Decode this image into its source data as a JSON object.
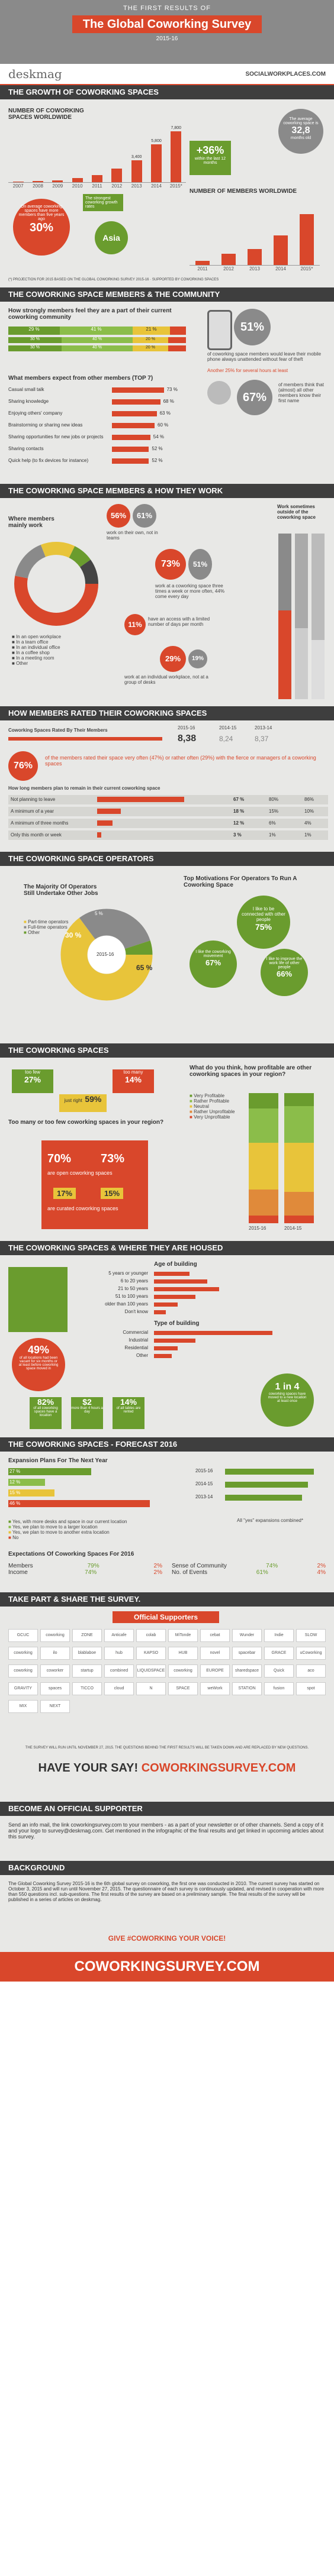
{
  "header": {
    "first_results": "THE FIRST RESULTS OF",
    "title": "The Global Coworking Survey",
    "year": "2015-16",
    "brand": "deskmag",
    "brand2": "SOCIALWORKPLACES.COM"
  },
  "sec1": {
    "title": "THE GROWTH OF COWORKING SPACES",
    "chart1_title": "NUMBER OF COWORKING SPACES WORLDWIDE",
    "growth_pct": "+36%",
    "growth_text": "within the last 12 months",
    "avg_text": "The average coworking space is",
    "avg_value": "32,8",
    "avg_unit": "months old",
    "callout_pct": "30%",
    "callout_text": "On average coworking spaces have more members than five years ago",
    "asia_label": "Asia",
    "asia_text": "The strongest coworking growth rates",
    "chart2_title": "NUMBER OF MEMBERS WORLDWIDE",
    "footnote": "(*) PROJECTION FOR 2015 BASED ON THE GLOBAL COWORKING SURVEY 2015-16 · SUPPORTED BY COWORKING SPACES"
  },
  "chart_data": [
    {
      "type": "bar",
      "title": "NUMBER OF COWORKING SPACES WORLDWIDE",
      "categories": [
        "2007",
        "2008",
        "2009",
        "2010",
        "2011",
        "2012",
        "2013",
        "2014",
        "2015*"
      ],
      "values": [
        75,
        160,
        310,
        600,
        1130,
        2070,
        3400,
        5800,
        7800
      ],
      "labels": [
        "",
        "",
        "",
        "",
        "",
        "",
        "3,400",
        "5,800",
        "7,800"
      ]
    },
    {
      "type": "bar",
      "title": "NUMBER OF MEMBERS WORLDWIDE",
      "categories": [
        "2011",
        "2012",
        "2013",
        "2014",
        "2015*"
      ],
      "values": [
        43000,
        110000,
        160000,
        295000,
        510000
      ],
      "labels": [
        "",
        "",
        "",
        "",
        ""
      ]
    },
    {
      "type": "bar",
      "title": "How strongly members feel they are a part of their current coworking community",
      "categories": [
        "2015",
        "2014",
        "2013"
      ],
      "series": [
        {
          "name": "1",
          "values": [
            29,
            30,
            30
          ]
        },
        {
          "name": "2",
          "values": [
            41,
            40,
            40
          ]
        },
        {
          "name": "3",
          "values": [
            21,
            20,
            20
          ]
        }
      ]
    },
    {
      "type": "bar",
      "title": "What members expect from other members (TOP 7)",
      "categories": [
        "Casual small talk",
        "Sharing knowledge",
        "Enjoying others' company",
        "Brainstorming or sharing new ideas",
        "Sharing opportunities for new jobs or projects",
        "Sharing contacts",
        "Quick help (to fix devices for instance)"
      ],
      "values": [
        73,
        68,
        63,
        60,
        54,
        52,
        52
      ]
    },
    {
      "type": "bar",
      "title": "How members rated their coworking spaces",
      "categories": [
        "2015-16",
        "2014-15",
        "2013-14"
      ],
      "values": [
        8.38,
        8.24,
        8.37
      ]
    },
    {
      "type": "table",
      "title": "How long members plan to remain in their current coworking space",
      "rows": [
        [
          "Not planning to leave",
          "67%",
          "80%",
          "86%"
        ],
        [
          "A minimum of a year",
          "18%",
          "15%",
          "10%"
        ],
        [
          "A minimum of three months",
          "12%",
          "6%",
          "4%"
        ],
        [
          "Only this month or week",
          "3%",
          "1%",
          "1%"
        ]
      ]
    },
    {
      "type": "pie",
      "title": "The Majority Of Operators Still Undertake Other Jobs",
      "categories": [
        "Part-time operators",
        "Full-time operators",
        "Other"
      ],
      "values": [
        65,
        30,
        5
      ]
    },
    {
      "type": "bar",
      "title": "Expansion Plans For The Next Year",
      "categories": [
        "Yes, with more desks and space in our current location",
        "Yes, we plan to move to a larger location",
        "Yes, we plan to move to another extra location",
        "No"
      ],
      "series": [
        {
          "name": "2015-16",
          "values": [
            27,
            12,
            15,
            46
          ]
        },
        {
          "name": "2014-15",
          "values": [
            25,
            13,
            17,
            45
          ]
        }
      ]
    }
  ],
  "sec2": {
    "title": "THE COWORKING SPACE MEMBERS & THE COMMUNITY",
    "q1": "How strongly members feel they are a part of their current coworking community",
    "rows": [
      {
        "year": "2015",
        "a": "29 %",
        "b": "41 %",
        "c": "21 %"
      },
      {
        "year": "2014",
        "a": "30 %",
        "b": "40 %",
        "c": "20 %"
      },
      {
        "year": "2013",
        "a": "30 %",
        "b": "40 %",
        "c": "20 %"
      }
    ],
    "phone_pct": "51%",
    "phone_text": "of coworking space members would leave their mobile phone always unattended without fear of theft",
    "another_text": "Another 25% for several hours at least",
    "members_pct": "67%",
    "members_text": "of members think that (almost) all other members know their first name",
    "expect_title": "What members expect from other members (TOP 7)",
    "expect": [
      {
        "label": "Casual small talk",
        "value": "73 %"
      },
      {
        "label": "Sharing knowledge",
        "value": "68 %"
      },
      {
        "label": "Enjoying others' company",
        "value": "63 %"
      },
      {
        "label": "Brainstorming or sharing new ideas",
        "value": "60 %"
      },
      {
        "label": "Sharing opportunities for new jobs or projects",
        "value": "54 %"
      },
      {
        "label": "Sharing contacts",
        "value": "52 %"
      },
      {
        "label": "Quick help (to fix devices for instance)",
        "value": "52 %"
      }
    ]
  },
  "sec3": {
    "title": "THE COWORKING SPACE MEMBERS & HOW THEY WORK",
    "where_title": "Where members mainly work",
    "p1": "56%",
    "p2": "61%",
    "p1_text": "work on their own, not in teams",
    "p3": "73%",
    "p4": "51%",
    "p3_text": "work at a coworking space three times a week or more often, 44% come every day",
    "p5": "11%",
    "p5_text": "have an access with a limited number of days per month",
    "p6": "29%",
    "p7": "19%",
    "p6_text": "work at an individual workplace, not at a group of desks",
    "outside_title": "Work sometimes outside of the coworking space",
    "legend": [
      "In an open workplace",
      "In a team office",
      "In an individual office",
      "In a coffee shop",
      "In a meeting room",
      "Other"
    ]
  },
  "sec4": {
    "title": "HOW MEMBERS RATED THEIR COWORKING SPACES",
    "rated": "Coworking Spaces Rated By Their Members",
    "v1": "8,38",
    "v2": "8,24",
    "v3": "8,37",
    "y1": "2015-16",
    "y2": "2014-15",
    "y3": "2013-14",
    "big_pct": "76%",
    "big_text": "of the members rated their space very often (47%) or rather often (29%) with the fierce or managers of a coworking spaces",
    "remain_title": "How long members plan to remain in their current coworking space",
    "remain": [
      {
        "label": "Not planning to leave",
        "a": "67 %",
        "b": "80%",
        "c": "86%"
      },
      {
        "label": "A minimum of a year",
        "a": "18 %",
        "b": "15%",
        "c": "10%"
      },
      {
        "label": "A minimum of three months",
        "a": "12 %",
        "b": "6%",
        "c": "4%"
      },
      {
        "label": "Only this month or week",
        "a": "3 %",
        "b": "1%",
        "c": "1%"
      }
    ]
  },
  "sec5": {
    "title": "THE COWORKING SPACE OPERATORS",
    "pie_title": "The Majority Of Operators Still Undertake Other Jobs",
    "pie_legend": [
      "Part-time operators",
      "Full-time operators",
      "Other"
    ],
    "pie_center": "2015-16",
    "pie_a": "65 %",
    "pie_b": "30 %",
    "pie_c": "5 %",
    "mot_title": "Top Motivations For Operators To Run A Coworking Space",
    "m1": "I like to be connected with other people",
    "m1v": "75%",
    "m2": "I like the coworking movement",
    "m2v": "67%",
    "m3": "I like to improve the work life of other people",
    "m3v": "66%"
  },
  "sec6": {
    "title": "THE COWORKING SPACES",
    "few": "too few",
    "few_pct": "27%",
    "many": "too many",
    "many_pct": "14%",
    "just": "just right",
    "just_pct": "59%",
    "q": "Too many or too few coworking spaces in your region?",
    "a70": "70%",
    "a73": "73%",
    "open_text": "are open coworking spaces",
    "a17": "17%",
    "a15": "15%",
    "cur_text": "are curated coworking spaces",
    "profit_title": "What do you think, how profitable are other coworking spaces in your region?",
    "profit_legend": [
      "Very Profitable",
      "Rather Profitable",
      "Neutral",
      "Rather Unprofitable",
      "Very Unprofitable"
    ],
    "profit_cols": [
      "2015-16",
      "2014-15"
    ]
  },
  "sec7": {
    "title": "THE COWORKING SPACES & WHERE THEY ARE HOUSED",
    "age_title": "Age of building",
    "age": [
      "5 years or younger",
      "6 to 20 years",
      "21 to 50 years",
      "51 to 100 years",
      "older than 100 years",
      "Don't know"
    ],
    "type_title": "Type of building",
    "types": [
      "Commercial",
      "Industrial",
      "Residential",
      "Other"
    ],
    "p49": "49%",
    "p49_text": "of all locations had been vacant for six months or at least before coworking space moved in",
    "p82": "82%",
    "p82_text": "of all coworking spaces have a location",
    "p2": "$2",
    "p2_text": "more than 4 hours a day",
    "p14": "14%",
    "p14_text": "of all tables are rented",
    "one4": "1 in 4",
    "one4_text": "coworking spaces have moved to a new location at least once"
  },
  "sec8": {
    "title": "THE COWORKING SPACES - FORECAST 2016",
    "exp_title": "Expansion Plans For The Next Year",
    "exp_rows": [
      "27 %",
      "12 %",
      "15 %",
      "46 %"
    ],
    "exp_legend": [
      "Yes, with more desks and space in our current location",
      "Yes, we plan to move to a larger location",
      "Yes, we plan to move to another extra location",
      "No"
    ],
    "all_yes": "All \"yes\" expansions combined*",
    "yrs": [
      "2015-16",
      "2014-15",
      "2013-14"
    ],
    "exp_title2": "Expectations Of Coworking Spaces For 2016",
    "t": [
      {
        "k": "Members",
        "a": "79%",
        "b": "2%"
      },
      {
        "k": "Income",
        "a": "74%",
        "b": "2%"
      }
    ],
    "t2": [
      {
        "k": "Sense of Community",
        "a": "74%",
        "b": "2%"
      },
      {
        "k": "No. of Events",
        "a": "61%",
        "b": "4%"
      }
    ]
  },
  "sec9": {
    "title": "TAKE PART & SHARE THE SURVEY.",
    "official": "Official Supporters",
    "sponsors": [
      "GCUC",
      "coworking",
      "ZONE",
      "Anticafe",
      "colab",
      "MiTonde",
      "cebat",
      "Wunder",
      "Indie",
      "SLOW",
      "coworking",
      "ilo",
      "blablaboe",
      "hub",
      "KAPSO",
      "HUB",
      "novel",
      "spacebar",
      "GRACE",
      "uCoworking",
      "coworking",
      "coworker",
      "startup",
      "combined",
      "LIQUIDSPACE",
      "coworking",
      "EUROPE",
      "sharedspace",
      "Quick",
      "aco",
      "GRAVITY",
      "spaces",
      "TICCO",
      "cloud",
      "N",
      "SPACE",
      "weWork",
      "STATION",
      "fusion",
      "spot",
      "MIX",
      "NEXT"
    ],
    "note": "THE SURVEY WILL RUN UNTIL NOVEMBER 27, 2015. THE QUESTIONS BEHIND THE FIRST RESULTS WILL BE TAKEN DOWN AND ARE REPLACED BY NEW QUESTIONS.",
    "say": "HAVE YOUR SAY!",
    "url": "COWORKINGSURVEY.COM"
  },
  "sec10": {
    "title": "BECOME AN OFFICIAL SUPPORTER",
    "text": "Send an info mail, the link coworkingsurvey.com to your members - as a part of your newsletter or of other channels. Send a copy of it and your logo to survey@deskmag.com. Get mentioned in the infographic of the final results and get linked in upcoming articles about this survey."
  },
  "sec11": {
    "title": "BACKGROUND",
    "text": "The Global Coworking Survey 2015-16 is the 6th global survey on coworking, the first one was conducted in 2010. The current survey has started on October 3, 2015 and will run until November 27, 2015. The questionnaire of each survey is continuously updated, and revised in cooperation with more than 550 questions incl. sub-questions. The first results of the survey are based on a preliminary sample. The final results of the survey will be published in a series of articles on deskmag.",
    "cta": "GIVE #COWORKING YOUR VOICE!",
    "final": "COWORKINGSURVEY.COM"
  }
}
